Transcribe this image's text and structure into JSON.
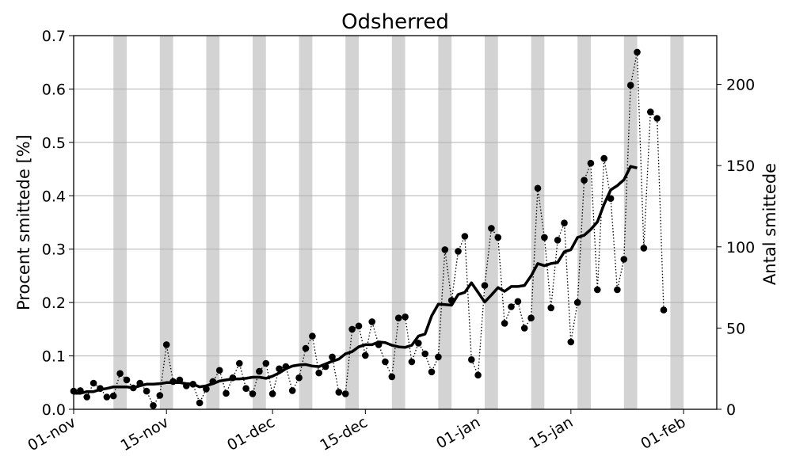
{
  "chart_data": {
    "type": "line",
    "title": "Odsherred",
    "ylabel_left": "Procent smittede [%]",
    "ylabel_right": "Antal smittede",
    "x_start": "2020-11-01",
    "x_range": [
      "2020-11-01",
      "2021-02-06"
    ],
    "ylim_left": [
      0,
      0.7
    ],
    "ylim_right": [
      0,
      230
    ],
    "yticks_left": [
      "0.0",
      "0.1",
      "0.2",
      "0.3",
      "0.4",
      "0.5",
      "0.6",
      "0.7"
    ],
    "yticks_right": [
      "0",
      "50",
      "100",
      "150",
      "200"
    ],
    "xticks": [
      "01-nov",
      "15-nov",
      "01-dec",
      "15-dec",
      "01-jan",
      "15-jan",
      "01-feb"
    ],
    "grid": "horizontal",
    "weekend_shading": true,
    "series": [
      {
        "name": "",
        "style": "dotted-markers",
        "color": "#000000",
        "values": [
          0.034,
          0.035,
          0.023,
          0.049,
          0.039,
          0.023,
          0.025,
          0.067,
          0.055,
          0.04,
          0.049,
          0.034,
          0.007,
          0.026,
          0.121,
          0.052,
          0.055,
          0.044,
          0.047,
          0.012,
          0.038,
          0.052,
          0.073,
          0.03,
          0.059,
          0.086,
          0.039,
          0.029,
          0.071,
          0.086,
          0.029,
          0.076,
          0.08,
          0.035,
          0.059,
          0.114,
          0.137,
          0.068,
          0.08,
          0.098,
          0.032,
          0.029,
          0.15,
          0.156,
          0.101,
          0.164,
          0.121,
          0.089,
          0.061,
          0.171,
          0.173,
          0.089,
          0.124,
          0.104,
          0.07,
          0.098,
          0.299,
          0.204,
          0.296,
          0.324,
          0.093,
          0.064,
          0.232,
          0.339,
          0.322,
          0.161,
          0.192,
          0.202,
          0.152,
          0.171,
          0.414,
          0.322,
          0.19,
          0.317,
          0.349,
          0.126,
          0.2,
          0.429,
          0.461,
          0.224,
          0.47,
          0.395,
          0.224,
          0.281,
          0.607,
          0.669,
          0.302,
          0.557,
          0.545,
          0.186
        ]
      },
      {
        "name": "",
        "style": "solid-thick",
        "color": "#000000",
        "values": [
          0.03,
          0.03,
          0.033,
          0.033,
          0.037,
          0.039,
          0.042,
          0.042,
          0.042,
          0.04,
          0.044,
          0.047,
          0.047,
          0.048,
          0.05,
          0.05,
          0.05,
          0.048,
          0.047,
          0.042,
          0.044,
          0.048,
          0.053,
          0.055,
          0.057,
          0.057,
          0.058,
          0.06,
          0.06,
          0.058,
          0.062,
          0.068,
          0.076,
          0.081,
          0.083,
          0.084,
          0.081,
          0.08,
          0.085,
          0.09,
          0.094,
          0.104,
          0.108,
          0.117,
          0.121,
          0.121,
          0.126,
          0.125,
          0.12,
          0.117,
          0.116,
          0.12,
          0.137,
          0.141,
          0.175,
          0.197,
          0.196,
          0.195,
          0.215,
          0.219,
          0.237,
          0.219,
          0.201,
          0.214,
          0.228,
          0.221,
          0.23,
          0.23,
          0.232,
          0.25,
          0.273,
          0.269,
          0.273,
          0.275,
          0.295,
          0.299,
          0.322,
          0.326,
          0.337,
          0.351,
          0.384,
          0.411,
          0.419,
          0.43,
          0.455,
          0.452
        ]
      }
    ]
  }
}
